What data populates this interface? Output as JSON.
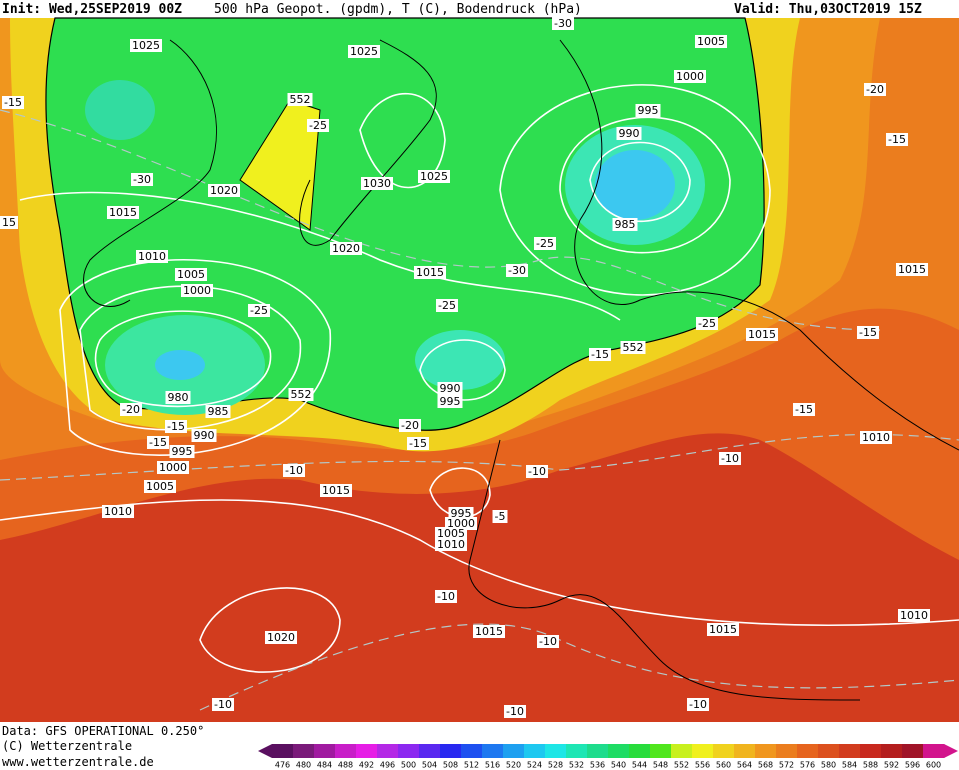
{
  "header": {
    "init": "Init: Wed,25SEP2019 00Z",
    "title": "500 hPa Geopot. (gpdm), T (C), Bodendruck (hPa)",
    "valid": "Valid: Thu,03OCT2019 15Z"
  },
  "map": {
    "labels": [
      "-30",
      "1025",
      "1025",
      "1005",
      "1000",
      "-15",
      "552",
      "-25",
      "995",
      "-20",
      "990",
      "-15",
      "-30",
      "1030",
      "1025",
      "1020",
      "1015",
      "15",
      "985",
      "-25",
      "1020",
      "1010",
      "1015",
      "-30",
      "1015",
      "1005",
      "1000",
      "-25",
      "-25",
      "-25",
      "1015",
      "-15",
      "-15",
      "552",
      "552",
      "980",
      "990",
      "995",
      "-20",
      "985",
      "-15",
      "-15",
      "990",
      "-20",
      "1010",
      "-15",
      "995",
      "-15",
      "1000",
      "-10",
      "-10",
      "-10",
      "1005",
      "1015",
      "1010",
      "995",
      "-5",
      "1000",
      "1005",
      "1010",
      "-10",
      "1020",
      "1015",
      "-10",
      "1015",
      "1010",
      "-10",
      "-10",
      "-10"
    ]
  },
  "footer": {
    "data": "Data: GFS OPERATIONAL 0.250°",
    "copyright": "(C) Wetterzentrale",
    "url": "www.wetterzentrale.de"
  },
  "colorbar": {
    "labels": [
      476,
      480,
      484,
      488,
      492,
      496,
      500,
      504,
      508,
      512,
      516,
      520,
      524,
      528,
      532,
      536,
      540,
      544,
      548,
      552,
      556,
      560,
      564,
      568,
      572,
      576,
      580,
      584,
      588,
      592,
      596,
      600
    ],
    "colors": [
      "#5a1060",
      "#7a1a7a",
      "#a01aa0",
      "#c81ec8",
      "#e61ee6",
      "#b428e6",
      "#8c28f0",
      "#5a28f0",
      "#2828f0",
      "#1e50f0",
      "#1e78f0",
      "#1ea0f0",
      "#1ec8f0",
      "#1ee6e6",
      "#1ee6b4",
      "#1edc8c",
      "#1edc64",
      "#28dc3c",
      "#50e61e",
      "#c8f01e",
      "#f0f01e",
      "#f0d21e",
      "#f0b41e",
      "#f0961e",
      "#eb7d1e",
      "#e6641e",
      "#dc501e",
      "#d23c1e",
      "#c8281e",
      "#b41e1e",
      "#a01428",
      "#d2148c"
    ]
  }
}
